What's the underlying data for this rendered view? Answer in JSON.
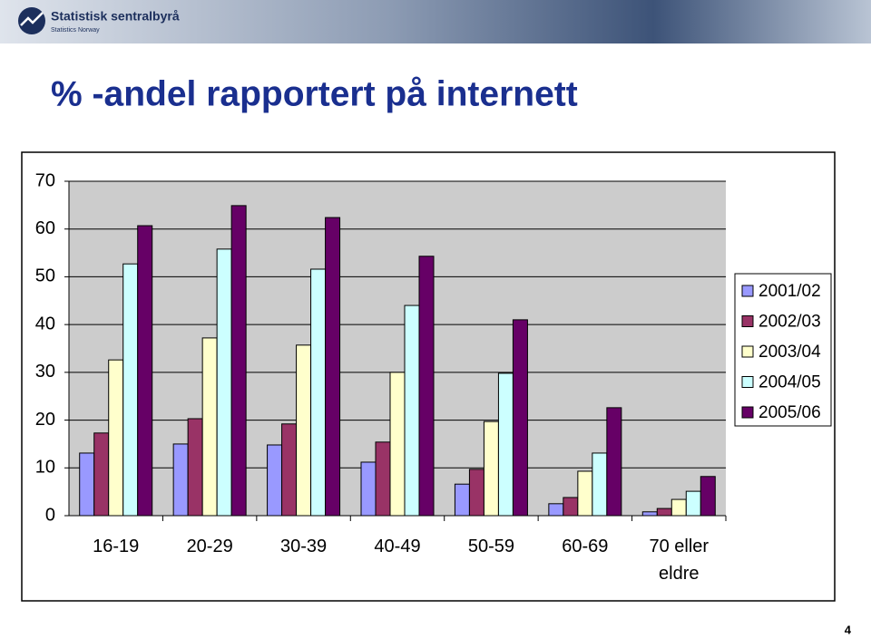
{
  "header": {
    "org": "Statistisk sentralbyrå",
    "org_en": "Statistics Norway"
  },
  "page_number": "4",
  "chart_data": {
    "type": "bar",
    "title": "% -andel rapportert på internett",
    "categories": [
      "16-19",
      "20-29",
      "30-39",
      "40-49",
      "50-59",
      "60-69",
      "70 eller eldre"
    ],
    "series": [
      {
        "name": "2001/02",
        "color": "#9999ff",
        "values": [
          13.1,
          15,
          14.8,
          11.2,
          6.6,
          2.5,
          0.8
        ]
      },
      {
        "name": "2002/03",
        "color": "#993366",
        "values": [
          17.3,
          20.3,
          19.2,
          15.4,
          9.7,
          3.8,
          1.5
        ]
      },
      {
        "name": "2003/04",
        "color": "#ffffcc",
        "values": [
          32.6,
          37.2,
          35.7,
          30,
          19.7,
          9.3,
          3.4
        ]
      },
      {
        "name": "2004/05",
        "color": "#ccffff",
        "values": [
          52.7,
          55.8,
          51.6,
          44,
          29.8,
          13.1,
          5.1
        ]
      },
      {
        "name": "2005/06",
        "color": "#660066",
        "values": [
          60.7,
          64.9,
          62.4,
          54.3,
          41,
          22.6,
          8.2
        ]
      }
    ],
    "ylim": [
      0,
      70
    ],
    "yticks": [
      0,
      10,
      20,
      30,
      40,
      50,
      60,
      70
    ],
    "grid": true,
    "legend": "right"
  }
}
